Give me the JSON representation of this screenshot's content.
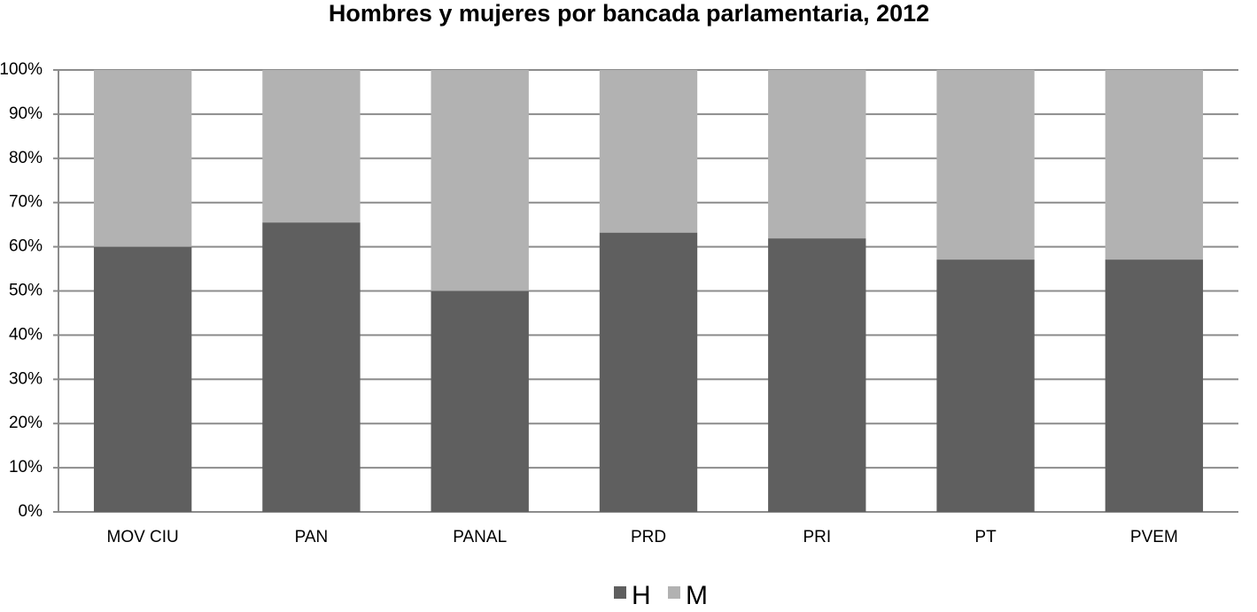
{
  "chart_data": {
    "type": "stacked_bar",
    "title": "Hombres y mujeres por bancada parlamentaria, 2012",
    "categories": [
      "MOV CIU",
      "PAN",
      "PANAL",
      "PRD",
      "PRI",
      "PT",
      "PVEM"
    ],
    "series": [
      {
        "name": "H",
        "color": "#5f5f5f",
        "values": [
          60,
          65.5,
          50,
          63.2,
          61.9,
          57.1,
          57.1
        ]
      },
      {
        "name": "M",
        "color": "#b2b2b2",
        "values": [
          40,
          34.5,
          50,
          36.8,
          38.1,
          42.9,
          42.9
        ]
      }
    ],
    "ylim": [
      0,
      100
    ],
    "yticks": [
      {
        "value": 0,
        "label": "0%"
      },
      {
        "value": 10,
        "label": "10%"
      },
      {
        "value": 20,
        "label": "20%"
      },
      {
        "value": 30,
        "label": "30%"
      },
      {
        "value": 40,
        "label": "40%"
      },
      {
        "value": 50,
        "label": "50%"
      },
      {
        "value": 60,
        "label": "60%"
      },
      {
        "value": 70,
        "label": "70%"
      },
      {
        "value": 80,
        "label": "80%"
      },
      {
        "value": 90,
        "label": "90%"
      },
      {
        "value": 100,
        "label": "100%"
      }
    ],
    "grid": true,
    "legend": "bottom"
  }
}
